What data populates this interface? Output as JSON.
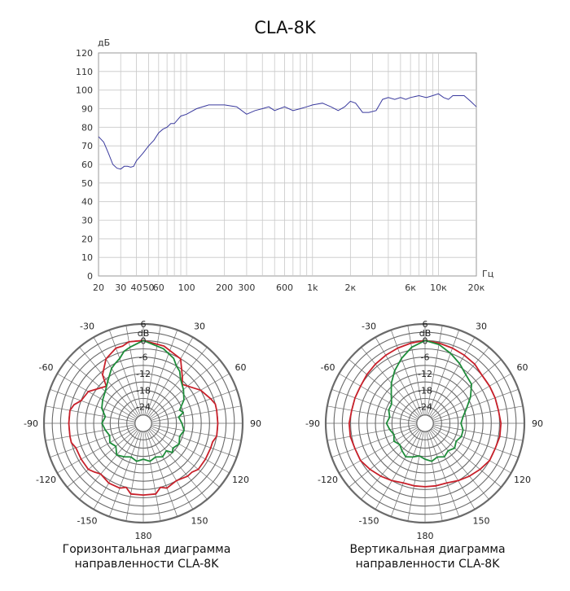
{
  "title": "CLA-8K",
  "chart_data": [
    {
      "type": "line",
      "title": "CLA-8K",
      "xlabel": "Гц",
      "ylabel": "дБ",
      "xscale": "log",
      "xlim": [
        20,
        20000
      ],
      "ylim": [
        0,
        120
      ],
      "grid": true,
      "line_color": "#3a3a9e",
      "y_ticks": [
        "0",
        "10",
        "20",
        "30",
        "40",
        "50",
        "60",
        "70",
        "80",
        "90",
        "100",
        "110",
        "120"
      ],
      "x_tick_labels": [
        {
          "label": "20",
          "x": 20
        },
        {
          "label": "30",
          "x": 30
        },
        {
          "label": "40",
          "x": 40
        },
        {
          "label": "50",
          "x": 50
        },
        {
          "label": "60",
          "x": 60
        },
        {
          "label": "100",
          "x": 100
        },
        {
          "label": "200",
          "x": 200
        },
        {
          "label": "300",
          "x": 300
        },
        {
          "label": "600",
          "x": 600
        },
        {
          "label": "1k",
          "x": 1000
        },
        {
          "label": "2к",
          "x": 2000
        },
        {
          "label": "6к",
          "x": 6000
        },
        {
          "label": "10к",
          "x": 10000
        },
        {
          "label": "20к",
          "x": 20000
        }
      ],
      "series": [
        {
          "x": [
            20,
            22,
            24,
            26,
            28,
            30,
            32,
            34,
            36,
            38,
            40,
            45,
            50,
            55,
            60,
            65,
            70,
            75,
            80,
            90,
            100,
            120,
            150,
            180,
            200,
            250,
            300,
            350,
            400,
            450,
            500,
            600,
            700,
            800,
            900,
            1000,
            1200,
            1400,
            1600,
            1800,
            2000,
            2200,
            2500,
            2800,
            3200,
            3600,
            4000,
            4500,
            5000,
            5500,
            6000,
            7000,
            8000,
            9000,
            10000,
            11000,
            12000,
            13000,
            14000,
            16000,
            18000,
            20000
          ],
          "y": [
            75,
            72,
            66,
            60,
            58,
            57.5,
            59,
            59,
            58.5,
            59,
            62,
            66,
            70,
            73,
            77,
            79,
            80,
            82,
            82,
            86,
            87,
            90,
            92,
            92,
            92,
            91,
            87,
            89,
            90,
            91,
            89,
            91,
            89,
            90,
            91,
            92,
            93,
            91,
            89,
            91,
            94,
            93,
            88,
            88,
            89,
            95,
            96,
            95,
            96,
            95,
            96,
            97,
            96,
            97,
            98,
            96,
            95,
            97,
            97,
            97,
            94,
            91
          ]
        }
      ]
    },
    {
      "type": "polar",
      "caption": "Горизонтальная диаграмма направленности CLA-8K",
      "unit": "dB",
      "radial_ticks": [
        "6",
        "0",
        "-6",
        "-12",
        "-18",
        "-24"
      ],
      "rlim": [
        -30,
        6
      ],
      "angle_labels": [
        {
          "label": "-30",
          "angle": -30
        },
        {
          "label": "30",
          "angle": 30
        },
        {
          "label": "-60",
          "angle": -60
        },
        {
          "label": "60",
          "angle": 60
        },
        {
          "label": "-90",
          "angle": -90
        },
        {
          "label": "90",
          "angle": 90
        },
        {
          "label": "-120",
          "angle": -120
        },
        {
          "label": "120",
          "angle": 120
        },
        {
          "label": "-150",
          "angle": -150
        },
        {
          "label": "150",
          "angle": 150
        },
        {
          "label": "180",
          "angle": 180
        }
      ],
      "series": [
        {
          "color": "#c8202a",
          "angles": [
            0,
            15,
            30,
            40,
            45,
            50,
            60,
            70,
            75,
            80,
            90,
            100,
            105,
            110,
            120,
            130,
            135,
            140,
            150,
            160,
            165,
            170,
            180,
            190,
            195,
            200,
            210,
            220,
            225,
            230,
            240,
            250,
            255,
            260,
            270,
            280,
            285,
            290,
            300,
            310,
            315,
            320,
            330,
            340,
            345,
            350,
            360
          ],
          "values": [
            0,
            -1,
            -3,
            -8,
            -10,
            -9,
            -6,
            -4,
            -3,
            -3,
            -3,
            -3,
            -4,
            -4,
            -4,
            -4,
            -5,
            -5,
            -6,
            -5,
            -6,
            -4,
            -4,
            -4,
            -6,
            -5,
            -5,
            -6,
            -5,
            -4,
            -4,
            -4,
            -3,
            -3,
            -3,
            -3,
            -4,
            -6,
            -7,
            -10,
            -11,
            -7,
            -3,
            -1,
            -1,
            0,
            0
          ]
        },
        {
          "color": "#1e8c3a",
          "angles": [
            0,
            15,
            25,
            30,
            35,
            40,
            50,
            60,
            70,
            75,
            80,
            90,
            100,
            110,
            120,
            130,
            135,
            140,
            150,
            160,
            170,
            180,
            190,
            200,
            210,
            220,
            230,
            240,
            250,
            260,
            270,
            280,
            290,
            300,
            310,
            320,
            330,
            335,
            340,
            345,
            350,
            360
          ],
          "values": [
            0,
            -2,
            -4,
            -6,
            -7,
            -9,
            -11,
            -13,
            -16,
            -15,
            -17,
            -16,
            -15,
            -16,
            -15,
            -16,
            -15,
            -17,
            -16,
            -17,
            -16,
            -17,
            -16,
            -17,
            -16,
            -15,
            -17,
            -16,
            -17,
            -16,
            -15,
            -16,
            -14,
            -13,
            -12,
            -10,
            -7,
            -6,
            -5,
            -3,
            -2,
            0
          ]
        }
      ]
    },
    {
      "type": "polar",
      "caption": "Вертикальная диаграмма направленности CLA-8K",
      "unit": "dB",
      "radial_ticks": [
        "6",
        "0",
        "-6",
        "-12",
        "-18",
        "-24"
      ],
      "rlim": [
        -30,
        6
      ],
      "angle_labels": [
        {
          "label": "-30",
          "angle": -30
        },
        {
          "label": "30",
          "angle": 30
        },
        {
          "label": "-60",
          "angle": -60
        },
        {
          "label": "60",
          "angle": 60
        },
        {
          "label": "-90",
          "angle": -90
        },
        {
          "label": "90",
          "angle": 90
        },
        {
          "label": "-120",
          "angle": -120
        },
        {
          "label": "120",
          "angle": 120
        },
        {
          "label": "-150",
          "angle": -150
        },
        {
          "label": "150",
          "angle": 150
        },
        {
          "label": "180",
          "angle": 180
        }
      ],
      "series": [
        {
          "color": "#c8202a",
          "angles": [
            0,
            10,
            20,
            30,
            40,
            50,
            60,
            70,
            80,
            90,
            100,
            110,
            120,
            130,
            140,
            150,
            160,
            170,
            180,
            190,
            200,
            210,
            220,
            230,
            240,
            250,
            260,
            270,
            280,
            290,
            300,
            310,
            320,
            330,
            340,
            350,
            360
          ],
          "values": [
            0,
            -0.5,
            -1,
            -1.5,
            -2,
            -3,
            -3,
            -3,
            -3,
            -2.5,
            -2.5,
            -3,
            -3,
            -4,
            -5,
            -6,
            -7,
            -7,
            -7,
            -7,
            -7,
            -6,
            -5,
            -4,
            -3,
            -3,
            -2.5,
            -2.5,
            -3,
            -3,
            -3,
            -2.5,
            -2,
            -1.5,
            -1,
            -0.5,
            0
          ]
        },
        {
          "color": "#1e8c3a",
          "angles": [
            0,
            10,
            20,
            30,
            40,
            50,
            60,
            70,
            80,
            90,
            100,
            110,
            120,
            130,
            140,
            150,
            160,
            170,
            180,
            190,
            200,
            210,
            220,
            230,
            240,
            250,
            260,
            270,
            280,
            290,
            300,
            310,
            320,
            330,
            340,
            350,
            360
          ],
          "values": [
            0,
            -1,
            -3,
            -5,
            -7,
            -8,
            -11,
            -14,
            -16,
            -17,
            -16,
            -16,
            -17,
            -16,
            -17,
            -16,
            -17,
            -16,
            -17,
            -18,
            -17,
            -16,
            -17,
            -18,
            -17,
            -18,
            -17,
            -16,
            -17,
            -16,
            -16,
            -14,
            -11,
            -8,
            -5,
            -2,
            0
          ]
        }
      ]
    }
  ]
}
